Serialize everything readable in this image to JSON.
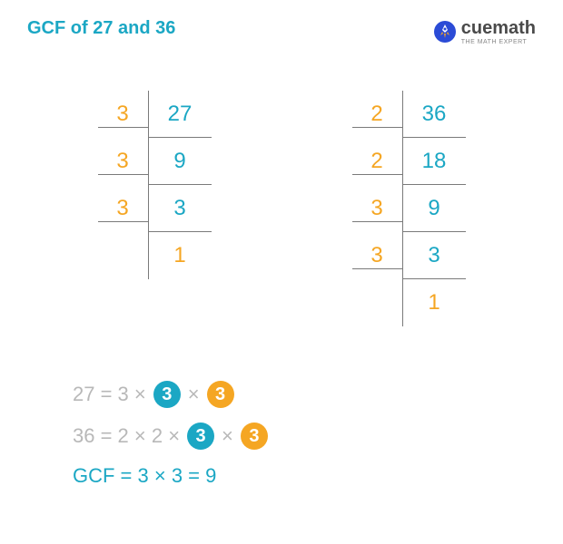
{
  "title": "GCF of 27 and 36",
  "logo": {
    "name": "cuemath",
    "sub": "THE MATH EXPERT"
  },
  "colors": {
    "cyan": "#1ba7c4",
    "orange": "#f5a623",
    "gray": "#b8b8b8",
    "border": "#7a7a7a",
    "white": "#ffffff"
  },
  "tables": {
    "left": {
      "rows": [
        {
          "divisor": "3",
          "value": "27",
          "divisorColor": "#f5a623",
          "valueColor": "#1ba7c4"
        },
        {
          "divisor": "3",
          "value": "9",
          "divisorColor": "#f5a623",
          "valueColor": "#1ba7c4"
        },
        {
          "divisor": "3",
          "value": "3",
          "divisorColor": "#f5a623",
          "valueColor": "#1ba7c4"
        },
        {
          "divisor": "",
          "value": "1",
          "divisorColor": "#f5a623",
          "valueColor": "#f5a623"
        }
      ]
    },
    "right": {
      "rows": [
        {
          "divisor": "2",
          "value": "36",
          "divisorColor": "#f5a623",
          "valueColor": "#1ba7c4"
        },
        {
          "divisor": "2",
          "value": "18",
          "divisorColor": "#f5a623",
          "valueColor": "#1ba7c4"
        },
        {
          "divisor": "3",
          "value": "9",
          "divisorColor": "#f5a623",
          "valueColor": "#1ba7c4"
        },
        {
          "divisor": "3",
          "value": "3",
          "divisorColor": "#f5a623",
          "valueColor": "#1ba7c4"
        },
        {
          "divisor": "",
          "value": "1",
          "divisorColor": "#f5a623",
          "valueColor": "#f5a623"
        }
      ]
    }
  },
  "equations": {
    "line1": {
      "parts": [
        {
          "type": "text",
          "text": "27 = 3 ×",
          "color": "#b8b8b8"
        },
        {
          "type": "circle",
          "text": "3",
          "bg": "#1ba7c4"
        },
        {
          "type": "text",
          "text": "×",
          "color": "#b8b8b8"
        },
        {
          "type": "circle",
          "text": "3",
          "bg": "#f5a623"
        }
      ]
    },
    "line2": {
      "parts": [
        {
          "type": "text",
          "text": "36 = 2 × 2 ×",
          "color": "#b8b8b8"
        },
        {
          "type": "circle",
          "text": "3",
          "bg": "#1ba7c4"
        },
        {
          "type": "text",
          "text": "×",
          "color": "#b8b8b8"
        },
        {
          "type": "circle",
          "text": "3",
          "bg": "#f5a623"
        }
      ]
    },
    "line3": {
      "parts": [
        {
          "type": "text",
          "text": "GCF = 3 × 3 = 9",
          "color": "#1ba7c4"
        }
      ]
    }
  }
}
